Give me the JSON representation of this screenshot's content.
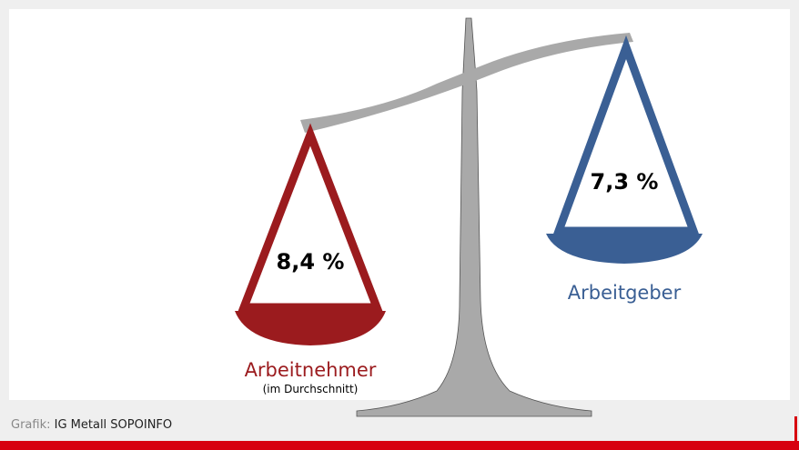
{
  "left_pan": {
    "value": "8,4 %",
    "label": "Arbeitnehmer",
    "sublabel": "(im Durchschnitt)"
  },
  "right_pan": {
    "value": "7,3 %",
    "label": "Arbeitgeber"
  },
  "footer": {
    "prefix": "Grafik:",
    "source": "IG Metall SOPOINFO"
  }
}
